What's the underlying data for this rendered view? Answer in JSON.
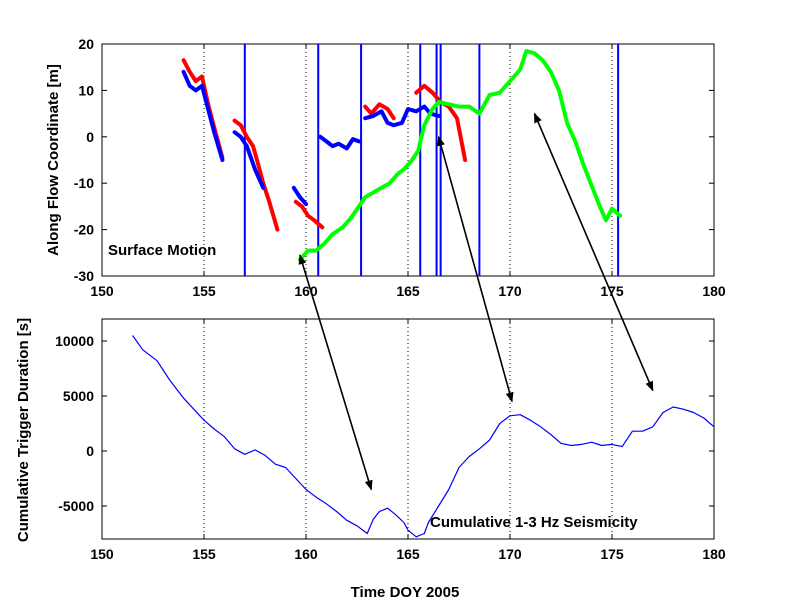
{
  "chart_data": [
    {
      "type": "line",
      "ylabel": "Along Flow Coordinate [m]",
      "annotation": "Surface Motion",
      "xlim": [
        150,
        180
      ],
      "ylim": [
        -30,
        20
      ],
      "xticks": [
        150,
        155,
        160,
        165,
        170,
        175,
        180
      ],
      "yticks": [
        -30,
        -20,
        -10,
        0,
        10,
        20
      ],
      "vertical_lines": [
        157.0,
        160.6,
        162.7,
        165.6,
        166.4,
        166.6,
        168.5,
        175.3
      ],
      "colors": {
        "red": "#ff0000",
        "blue": "#0000ff",
        "green": "#00ff00",
        "vlines": "#0000ff"
      },
      "series": [
        {
          "color": "red",
          "segments": [
            [
              [
                154.0,
                16.5
              ],
              [
                154.3,
                14
              ],
              [
                154.6,
                12
              ],
              [
                154.9,
                13
              ],
              [
                155.2,
                7
              ],
              [
                155.5,
                2
              ],
              [
                155.9,
                -4.5
              ]
            ],
            [
              [
                156.5,
                3.5
              ],
              [
                156.8,
                2.5
              ],
              [
                157.1,
                0
              ],
              [
                157.4,
                -2
              ],
              [
                157.6,
                -5
              ],
              [
                157.9,
                -10
              ],
              [
                158.2,
                -14
              ],
              [
                158.6,
                -20
              ]
            ],
            [
              [
                159.5,
                -14
              ],
              [
                159.8,
                -15
              ],
              [
                160.1,
                -17
              ],
              [
                160.4,
                -18
              ],
              [
                160.8,
                -19.5
              ]
            ],
            [
              [
                162.9,
                6.5
              ],
              [
                163.2,
                5
              ],
              [
                163.6,
                7
              ],
              [
                164.0,
                6
              ],
              [
                164.3,
                4
              ]
            ],
            [
              [
                165.4,
                9.5
              ],
              [
                165.8,
                11
              ],
              [
                166.2,
                9.5
              ],
              [
                166.6,
                7.5
              ],
              [
                167.0,
                6.5
              ],
              [
                167.4,
                4
              ],
              [
                167.8,
                -5
              ]
            ]
          ]
        },
        {
          "color": "blue",
          "segments": [
            [
              [
                154.0,
                14
              ],
              [
                154.3,
                11
              ],
              [
                154.6,
                10
              ],
              [
                154.9,
                11
              ],
              [
                155.2,
                6
              ],
              [
                155.5,
                1
              ],
              [
                155.9,
                -5
              ]
            ],
            [
              [
                156.5,
                1
              ],
              [
                156.8,
                0
              ],
              [
                157.1,
                -2
              ],
              [
                157.5,
                -7
              ],
              [
                157.9,
                -11
              ]
            ],
            [
              [
                159.4,
                -11
              ],
              [
                159.7,
                -13
              ],
              [
                160.0,
                -14.5
              ]
            ],
            [
              [
                160.7,
                0
              ],
              [
                161.0,
                -1
              ],
              [
                161.3,
                -2
              ],
              [
                161.6,
                -1.5
              ],
              [
                162.0,
                -2.5
              ],
              [
                162.3,
                -0.5
              ],
              [
                162.6,
                -1
              ]
            ],
            [
              [
                162.9,
                4
              ],
              [
                163.3,
                4.5
              ],
              [
                163.7,
                5.5
              ],
              [
                164.0,
                3
              ],
              [
                164.3,
                2.5
              ],
              [
                164.7,
                3
              ],
              [
                165.0,
                6
              ],
              [
                165.4,
                5.5
              ],
              [
                165.8,
                6.5
              ],
              [
                166.1,
                5
              ],
              [
                166.5,
                4.5
              ]
            ]
          ]
        },
        {
          "color": "green",
          "segments": [
            [
              [
                159.7,
                -26.5
              ],
              [
                160.1,
                -24.5
              ],
              [
                160.5,
                -24.5
              ],
              [
                160.9,
                -23
              ],
              [
                161.3,
                -21
              ],
              [
                161.8,
                -19.5
              ],
              [
                162.2,
                -17.5
              ],
              [
                162.6,
                -15
              ],
              [
                162.9,
                -13
              ],
              [
                163.3,
                -12
              ],
              [
                163.7,
                -11
              ],
              [
                164.1,
                -10
              ],
              [
                164.5,
                -8
              ],
              [
                164.8,
                -7
              ],
              [
                165.2,
                -5
              ],
              [
                165.5,
                -3
              ],
              [
                165.8,
                2.5
              ],
              [
                166.2,
                6
              ],
              [
                166.5,
                7.5
              ],
              [
                167.0,
                7
              ],
              [
                167.5,
                6.5
              ],
              [
                168.0,
                6.5
              ],
              [
                168.5,
                5
              ],
              [
                169.0,
                9
              ],
              [
                169.5,
                9.5
              ],
              [
                170.0,
                12
              ],
              [
                170.5,
                14.5
              ],
              [
                170.8,
                18.5
              ],
              [
                171.2,
                18
              ],
              [
                171.6,
                16.5
              ],
              [
                172.0,
                14
              ],
              [
                172.4,
                10
              ],
              [
                172.8,
                3
              ],
              [
                173.2,
                -1
              ],
              [
                173.6,
                -6
              ],
              [
                174.0,
                -10.5
              ],
              [
                174.4,
                -15
              ],
              [
                174.7,
                -18
              ],
              [
                175.0,
                -15.5
              ],
              [
                175.4,
                -17
              ]
            ]
          ]
        }
      ]
    },
    {
      "type": "line",
      "xlabel": "Time DOY 2005",
      "ylabel": "Cumulative Trigger Duration [s]",
      "annotation": "Cumulative 1-3 Hz Seismicity",
      "xlim": [
        150,
        180
      ],
      "ylim": [
        -8000,
        12000
      ],
      "xticks": [
        150,
        155,
        160,
        165,
        170,
        175,
        180
      ],
      "yticks": [
        -5000,
        0,
        5000,
        10000
      ],
      "series": [
        {
          "color": "blue",
          "x": [
            151.5,
            152.0,
            152.7,
            153.3,
            154.0,
            154.5,
            155.0,
            155.5,
            156.0,
            156.5,
            157.0,
            157.5,
            158.0,
            158.5,
            159.0,
            159.5,
            160.0,
            160.5,
            161.0,
            161.5,
            162.0,
            162.5,
            163.0,
            163.3,
            163.6,
            164.0,
            164.4,
            164.8,
            165.0,
            165.4,
            165.8,
            166.0,
            166.5,
            167.0,
            167.5,
            168.0,
            168.5,
            169.0,
            169.5,
            170.0,
            170.5,
            171.0,
            171.5,
            172.0,
            172.5,
            173.0,
            173.5,
            174.0,
            174.5,
            175.0,
            175.5,
            176.0,
            176.5,
            177.0,
            177.5,
            178.0,
            178.5,
            179.0,
            179.5,
            180.0
          ],
          "values": [
            10500,
            9200,
            8200,
            6500,
            4800,
            3800,
            2800,
            2000,
            1300,
            200,
            -300,
            100,
            -400,
            -1200,
            -1500,
            -2500,
            -3500,
            -4200,
            -4800,
            -5500,
            -6300,
            -6800,
            -7500,
            -6200,
            -5500,
            -5200,
            -5800,
            -6500,
            -7200,
            -7800,
            -7500,
            -6500,
            -5000,
            -3500,
            -1500,
            -500,
            200,
            1000,
            2500,
            3200,
            3300,
            2800,
            2200,
            1500,
            700,
            500,
            600,
            800,
            500,
            600,
            400,
            1800,
            1800,
            2200,
            3500,
            4000,
            3800,
            3500,
            3000,
            2200
          ]
        }
      ]
    }
  ],
  "arrows": [
    {
      "from": {
        "panel": 0,
        "x": 159.7,
        "y": -25.5
      },
      "to": {
        "panel": 1,
        "x": 163.2,
        "y": -3500
      }
    },
    {
      "from": {
        "panel": 0,
        "x": 166.5,
        "y": 0
      },
      "to": {
        "panel": 1,
        "x": 170.1,
        "y": 4500
      }
    },
    {
      "from": {
        "panel": 0,
        "x": 171.2,
        "y": 5
      },
      "to": {
        "panel": 1,
        "x": 177.0,
        "y": 5500
      }
    }
  ]
}
